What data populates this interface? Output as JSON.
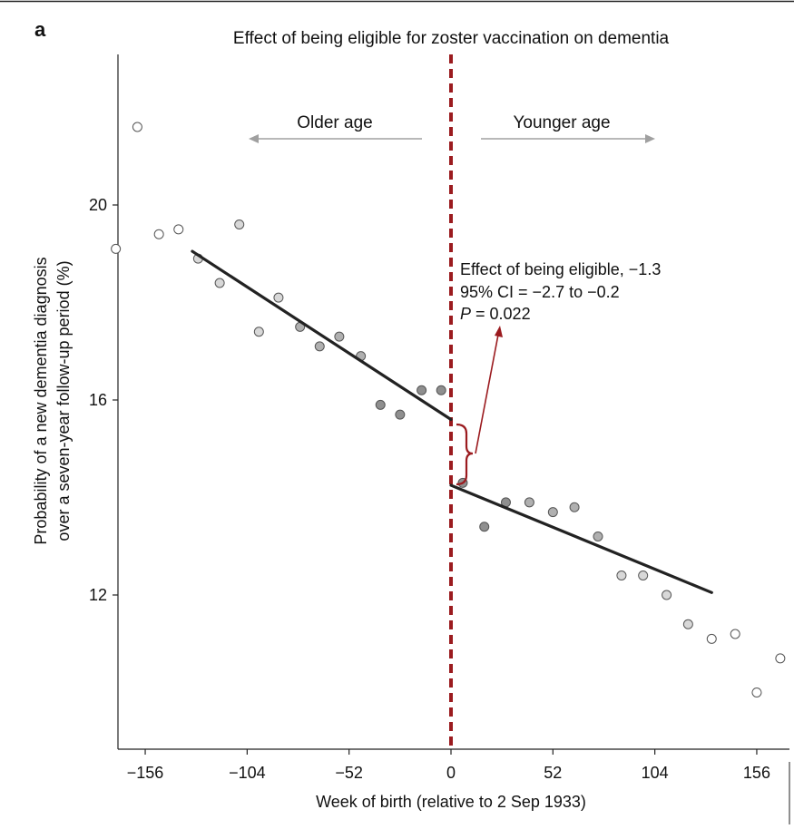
{
  "panel_label": "a",
  "chart_data": {
    "type": "scatter",
    "title": "Effect of being eligible for zoster vaccination on dementia",
    "xlabel": "Week of birth (relative to 2 Sep 1933)",
    "ylabel_line1": "Probability of a new dementia diagnosis",
    "ylabel_line2": "over a seven-year follow-up period (%)",
    "xlim": [
      -170,
      166
    ],
    "ylim": [
      9.0,
      22.2
    ],
    "x_ticks": [
      -156,
      -104,
      -52,
      0,
      52,
      104,
      156
    ],
    "x_tick_labels": [
      "−156",
      "−104",
      "−52",
      "0",
      "52",
      "104",
      "156"
    ],
    "y_ticks": [
      12,
      16,
      20
    ],
    "y_tick_labels": [
      "12",
      "16",
      "20"
    ],
    "cutoff_x": 0,
    "points": [
      {
        "x": -171,
        "y": 19.1
      },
      {
        "x": -160,
        "y": 21.6
      },
      {
        "x": -149,
        "y": 19.4
      },
      {
        "x": -139,
        "y": 19.5
      },
      {
        "x": -129,
        "y": 18.9
      },
      {
        "x": -118,
        "y": 18.4
      },
      {
        "x": -108,
        "y": 19.6
      },
      {
        "x": -98,
        "y": 17.4
      },
      {
        "x": -88,
        "y": 18.1
      },
      {
        "x": -77,
        "y": 17.5
      },
      {
        "x": -67,
        "y": 17.1
      },
      {
        "x": -57,
        "y": 17.3
      },
      {
        "x": -46,
        "y": 16.9
      },
      {
        "x": -36,
        "y": 15.9
      },
      {
        "x": -26,
        "y": 15.7
      },
      {
        "x": -15,
        "y": 16.2
      },
      {
        "x": -5,
        "y": 16.2
      },
      {
        "x": 6,
        "y": 14.3
      },
      {
        "x": 17,
        "y": 13.4
      },
      {
        "x": 28,
        "y": 13.9
      },
      {
        "x": 40,
        "y": 13.9
      },
      {
        "x": 52,
        "y": 13.7
      },
      {
        "x": 63,
        "y": 13.8
      },
      {
        "x": 75,
        "y": 13.2
      },
      {
        "x": 87,
        "y": 12.4
      },
      {
        "x": 98,
        "y": 12.4
      },
      {
        "x": 110,
        "y": 12.0
      },
      {
        "x": 121,
        "y": 11.4
      },
      {
        "x": 133,
        "y": 11.1
      },
      {
        "x": 145,
        "y": 11.2
      },
      {
        "x": 156,
        "y": 10.0
      },
      {
        "x": 168,
        "y": 10.7
      }
    ],
    "fit_lines": [
      {
        "x": [
          -132,
          0
        ],
        "y": [
          19.05,
          15.6
        ]
      },
      {
        "x": [
          0,
          133
        ],
        "y": [
          14.25,
          12.05
        ]
      }
    ],
    "left_arrow_label": "Older age",
    "right_arrow_label": "Younger age",
    "annotation": {
      "line1": "Effect of being eligible, −1.3",
      "line2": "95% CI = −2.7 to −0.2",
      "line3_italic": "P",
      "line3_rest": " = 0.022"
    },
    "colors": {
      "cutoff_line": "#9b1b1f",
      "fit_line": "#222222",
      "arrows": "#a0a0a0",
      "annotation_arrow": "#9b1b1f"
    }
  }
}
